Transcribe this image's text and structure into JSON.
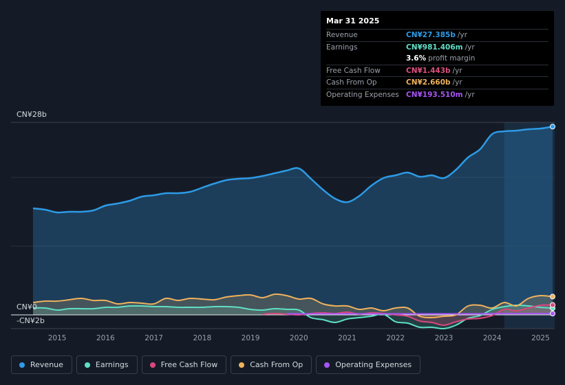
{
  "tooltip": {
    "date": "Mar 31 2025",
    "rows": [
      {
        "label": "Revenue",
        "value": "CN¥27.385b",
        "unit": "/yr",
        "color": "#2d9be6"
      },
      {
        "label": "Earnings",
        "value": "CN¥981.406m",
        "unit": "/yr",
        "color": "#5fe0c7"
      },
      {
        "label": "",
        "value": "3.6%",
        "unit": "profit margin",
        "color": "#ffffff"
      },
      {
        "label": "Free Cash Flow",
        "value": "CN¥1.443b",
        "unit": "/yr",
        "color": "#e0507f"
      },
      {
        "label": "Cash From Op",
        "value": "CN¥2.660b",
        "unit": "/yr",
        "color": "#f0b25d"
      },
      {
        "label": "Operating Expenses",
        "value": "CN¥193.510m",
        "unit": "/yr",
        "color": "#a855f7"
      }
    ]
  },
  "legend": [
    {
      "label": "Revenue",
      "color": "#2d9be6"
    },
    {
      "label": "Earnings",
      "color": "#5fe0c7"
    },
    {
      "label": "Free Cash Flow",
      "color": "#d8487c"
    },
    {
      "label": "Cash From Op",
      "color": "#f0b25d"
    },
    {
      "label": "Operating Expenses",
      "color": "#a855f7"
    }
  ],
  "chart_data": {
    "type": "area",
    "title": "",
    "ylabel_top": "CN¥28b",
    "ylabel_zero": "CN¥0",
    "ylabel_bottom": "-CN¥2b",
    "ylim": [
      -2,
      28
    ],
    "xlim": [
      2014.5,
      2025.25
    ],
    "x_ticks": [
      "2015",
      "2016",
      "2017",
      "2018",
      "2019",
      "2020",
      "2021",
      "2022",
      "2023",
      "2024",
      "2025"
    ],
    "highlight_from": 2024.25,
    "series": [
      {
        "name": "Revenue",
        "color": "#2d9be6",
        "x": [
          2014.5,
          2014.75,
          2015.0,
          2015.25,
          2015.5,
          2015.75,
          2016.0,
          2016.25,
          2016.5,
          2016.75,
          2017.0,
          2017.25,
          2017.5,
          2017.75,
          2018.0,
          2018.25,
          2018.5,
          2018.75,
          2019.0,
          2019.25,
          2019.5,
          2019.75,
          2020.0,
          2020.25,
          2020.5,
          2020.75,
          2021.0,
          2021.25,
          2021.5,
          2021.75,
          2022.0,
          2022.25,
          2022.5,
          2022.75,
          2023.0,
          2023.25,
          2023.5,
          2023.75,
          2024.0,
          2024.25,
          2024.5,
          2024.75,
          2025.0,
          2025.25
        ],
        "values": [
          15.5,
          15.3,
          14.9,
          15.0,
          15.0,
          15.2,
          15.9,
          16.2,
          16.6,
          17.2,
          17.4,
          17.7,
          17.7,
          17.9,
          18.5,
          19.1,
          19.6,
          19.8,
          19.9,
          20.2,
          20.6,
          21.0,
          21.3,
          19.8,
          18.2,
          16.9,
          16.4,
          17.3,
          18.8,
          19.9,
          20.3,
          20.7,
          20.1,
          20.3,
          19.9,
          21.1,
          22.9,
          24.1,
          26.3,
          26.7,
          26.8,
          27.0,
          27.1,
          27.385
        ]
      },
      {
        "name": "Earnings",
        "color": "#5fe0c7",
        "x": [
          2014.5,
          2014.75,
          2015.0,
          2015.25,
          2015.5,
          2015.75,
          2016.0,
          2016.25,
          2016.5,
          2016.75,
          2017.0,
          2017.25,
          2017.5,
          2017.75,
          2018.0,
          2018.25,
          2018.5,
          2018.75,
          2019.0,
          2019.25,
          2019.5,
          2019.75,
          2020.0,
          2020.25,
          2020.5,
          2020.75,
          2021.0,
          2021.25,
          2021.5,
          2021.75,
          2022.0,
          2022.25,
          2022.5,
          2022.75,
          2023.0,
          2023.25,
          2023.5,
          2023.75,
          2024.0,
          2024.25,
          2024.5,
          2024.75,
          2025.0,
          2025.25
        ],
        "values": [
          1.0,
          1.0,
          0.7,
          0.9,
          0.9,
          0.9,
          1.1,
          1.1,
          1.3,
          1.3,
          1.2,
          1.2,
          1.1,
          1.1,
          1.1,
          1.2,
          1.2,
          1.1,
          0.8,
          0.7,
          0.9,
          0.8,
          0.7,
          -0.4,
          -0.7,
          -1.1,
          -0.6,
          -0.4,
          -0.2,
          0.1,
          -1.0,
          -1.2,
          -1.8,
          -1.8,
          -2.0,
          -1.5,
          -0.5,
          -0.1,
          0.8,
          1.2,
          1.4,
          1.3,
          1.1,
          0.981
        ]
      },
      {
        "name": "Free Cash Flow",
        "color": "#d8487c",
        "x": [
          2019.25,
          2019.5,
          2019.75,
          2020.0,
          2020.25,
          2020.5,
          2020.75,
          2021.0,
          2021.25,
          2021.5,
          2021.75,
          2022.0,
          2022.25,
          2022.5,
          2022.75,
          2023.0,
          2023.25,
          2023.5,
          2023.75,
          2024.0,
          2024.25,
          2024.5,
          2024.75,
          2025.0,
          2025.25
        ],
        "values": [
          0.1,
          0.2,
          0.1,
          0.0,
          0.2,
          0.3,
          0.2,
          0.4,
          0.1,
          0.3,
          0.2,
          0.0,
          -0.2,
          -0.9,
          -1.1,
          -1.5,
          -1.0,
          -0.6,
          -0.5,
          -0.1,
          0.8,
          0.6,
          1.0,
          1.4,
          1.443
        ]
      },
      {
        "name": "Cash From Op",
        "color": "#f0b25d",
        "x": [
          2014.5,
          2014.75,
          2015.0,
          2015.25,
          2015.5,
          2015.75,
          2016.0,
          2016.25,
          2016.5,
          2016.75,
          2017.0,
          2017.25,
          2017.5,
          2017.75,
          2018.0,
          2018.25,
          2018.5,
          2018.75,
          2019.0,
          2019.25,
          2019.5,
          2019.75,
          2020.0,
          2020.25,
          2020.5,
          2020.75,
          2021.0,
          2021.25,
          2021.5,
          2021.75,
          2022.0,
          2022.25,
          2022.5,
          2022.75,
          2023.0,
          2023.25,
          2023.5,
          2023.75,
          2024.0,
          2024.25,
          2024.5,
          2024.75,
          2025.0,
          2025.25
        ],
        "values": [
          1.8,
          2.0,
          2.0,
          2.2,
          2.4,
          2.1,
          2.1,
          1.6,
          1.8,
          1.7,
          1.6,
          2.4,
          2.1,
          2.4,
          2.3,
          2.2,
          2.6,
          2.8,
          2.9,
          2.5,
          3.0,
          2.8,
          2.3,
          2.4,
          1.6,
          1.3,
          1.3,
          0.8,
          1.0,
          0.6,
          1.0,
          1.0,
          -0.2,
          -0.4,
          -0.2,
          0.0,
          1.3,
          1.4,
          1.0,
          1.8,
          1.3,
          2.4,
          2.8,
          2.66
        ]
      },
      {
        "name": "Operating Expenses",
        "color": "#a855f7",
        "x": [
          2019.75,
          2020.0,
          2020.5,
          2021.0,
          2021.5,
          2022.0,
          2022.5,
          2023.0,
          2023.5,
          2024.0,
          2024.5,
          2025.0,
          2025.25
        ],
        "values": [
          0.15,
          0.15,
          0.15,
          0.15,
          0.15,
          0.15,
          0.15,
          0.15,
          0.15,
          0.18,
          0.18,
          0.19,
          0.19351
        ]
      }
    ]
  }
}
